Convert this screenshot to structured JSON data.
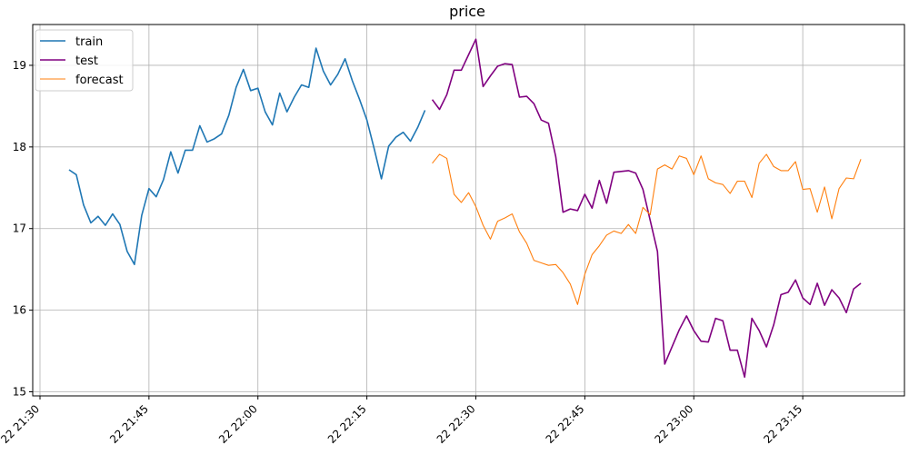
{
  "chart_data": {
    "type": "line",
    "title": "price",
    "xlabel": "",
    "ylabel": "",
    "x_axis": {
      "type": "time",
      "range": [
        "2024-01-22 21:29",
        "2024-01-22 23:29"
      ],
      "ticks": [
        {
          "value": "2024-01-22 21:30",
          "label": "22 21:30"
        },
        {
          "value": "2024-01-22 21:45",
          "label": "22 21:45"
        },
        {
          "value": "2024-01-22 22:00",
          "label": "22 22:00"
        },
        {
          "value": "2024-01-22 22:15",
          "label": "22 22:15"
        },
        {
          "value": "2024-01-22 22:30",
          "label": "22 22:30"
        },
        {
          "value": "2024-01-22 22:45",
          "label": "22 22:45"
        },
        {
          "value": "2024-01-22 23:00",
          "label": "22 23:00"
        },
        {
          "value": "2024-01-22 23:15",
          "label": "22 23:15"
        }
      ]
    },
    "y_axis": {
      "range": [
        14.95,
        19.5
      ],
      "ticks": [
        15,
        16,
        17,
        18,
        19
      ]
    },
    "grid": true,
    "legend_position": "top-left",
    "series": [
      {
        "name": "train",
        "color": "#1f77b4",
        "start": "2024-01-22 21:34",
        "values": [
          17.72,
          17.66,
          17.29,
          17.07,
          17.15,
          17.04,
          17.18,
          17.05,
          16.72,
          16.56,
          17.16,
          17.49,
          17.39,
          17.6,
          17.94,
          17.68,
          17.96,
          17.96,
          18.26,
          18.06,
          18.1,
          18.16,
          18.39,
          18.73,
          18.95,
          18.69,
          18.72,
          18.43,
          18.27,
          18.66,
          18.43,
          18.61,
          18.76,
          18.73,
          19.21,
          18.93,
          18.76,
          18.89,
          19.08,
          18.81,
          18.58,
          18.33,
          17.98,
          17.61,
          18.01,
          18.12,
          18.18,
          18.07,
          18.24,
          18.45
        ]
      },
      {
        "name": "test",
        "color": "#800080",
        "start": "2024-01-22 22:24",
        "values": [
          18.58,
          18.46,
          18.64,
          18.94,
          18.94,
          19.13,
          19.32,
          18.74,
          18.87,
          18.99,
          19.02,
          19.01,
          18.61,
          18.62,
          18.53,
          18.33,
          18.29,
          17.88,
          17.2,
          17.24,
          17.22,
          17.42,
          17.25,
          17.59,
          17.31,
          17.69,
          17.7,
          17.71,
          17.68,
          17.48,
          17.1,
          16.72,
          15.34,
          15.55,
          15.76,
          15.93,
          15.75,
          15.62,
          15.61,
          15.9,
          15.87,
          15.51,
          15.51,
          15.18,
          15.9,
          15.75,
          15.55,
          15.82,
          16.19,
          16.22,
          16.37,
          16.15,
          16.07,
          16.33,
          16.06,
          16.25,
          16.15,
          15.97,
          16.26,
          16.33
        ]
      },
      {
        "name": "forecast",
        "color": "#ff7f0e",
        "start": "2024-01-22 22:24",
        "values": [
          17.8,
          17.91,
          17.86,
          17.42,
          17.32,
          17.44,
          17.27,
          17.04,
          16.87,
          17.09,
          17.13,
          17.18,
          16.96,
          16.82,
          16.61,
          16.58,
          16.55,
          16.56,
          16.46,
          16.32,
          16.07,
          16.44,
          16.68,
          16.79,
          16.92,
          16.97,
          16.94,
          17.05,
          16.94,
          17.26,
          17.17,
          17.73,
          17.78,
          17.73,
          17.89,
          17.86,
          17.66,
          17.89,
          17.61,
          17.56,
          17.54,
          17.43,
          17.58,
          17.58,
          17.38,
          17.8,
          17.91,
          17.76,
          17.71,
          17.71,
          17.82,
          17.48,
          17.49,
          17.2,
          17.51,
          17.12,
          17.49,
          17.62,
          17.61,
          17.85
        ]
      }
    ]
  }
}
